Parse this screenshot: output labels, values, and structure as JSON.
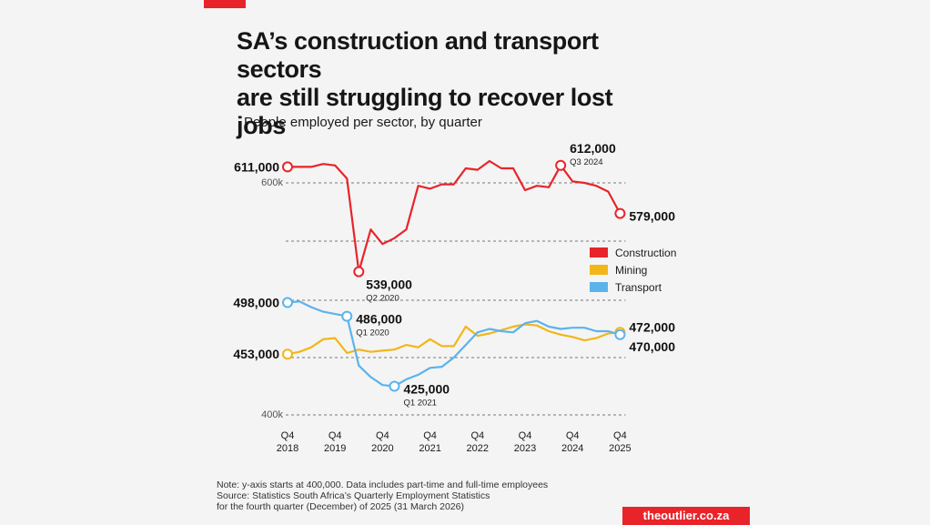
{
  "header": {
    "title_line1": "SA’s construction and transport sectors",
    "title_line2": "are still struggling to recover lost jobs",
    "subtitle": "People employed per sector, by quarter"
  },
  "footer": {
    "note": "Note: y-axis starts at 400,000. Data includes part-time and full-time employees",
    "source_line1": "Source: Statistics South Africa’s Quarterly Employment Statistics",
    "source_line2": "for the fourth quarter (December) of 2025 (31 March 2026)",
    "brand": "theoutlier.co.za"
  },
  "colors": {
    "construction": "#e8242a",
    "mining": "#f2b619",
    "transport": "#5bb3ec",
    "accent": "#e8242a"
  },
  "chart_data": {
    "type": "line",
    "title": "People employed per sector, by quarter",
    "x_tick_labels": [
      {
        "q": "Q4",
        "y": "2018"
      },
      {
        "q": "Q4",
        "y": "2019"
      },
      {
        "q": "Q4",
        "y": "2020"
      },
      {
        "q": "Q4",
        "y": "2021"
      },
      {
        "q": "Q4",
        "y": "2022"
      },
      {
        "q": "Q4",
        "y": "2023"
      },
      {
        "q": "Q4",
        "y": "2024"
      },
      {
        "q": "Q4",
        "y": "2025"
      }
    ],
    "y_tick_labels": [
      "600k",
      "400k"
    ],
    "x": [
      "Q4 2018",
      "Q1 2019",
      "Q2 2019",
      "Q3 2019",
      "Q4 2019",
      "Q1 2020",
      "Q2 2020",
      "Q3 2020",
      "Q4 2020",
      "Q1 2021",
      "Q2 2021",
      "Q3 2021",
      "Q4 2021",
      "Q1 2022",
      "Q2 2022",
      "Q3 2022",
      "Q4 2022",
      "Q1 2023",
      "Q2 2023",
      "Q3 2023",
      "Q4 2023",
      "Q1 2024",
      "Q2 2024",
      "Q3 2024",
      "Q4 2024",
      "Q1 2025",
      "Q2 2025",
      "Q3 2025",
      "Q4 2025"
    ],
    "series": [
      {
        "name": "Construction",
        "color": "#e8242a",
        "values": [
          611000,
          611000,
          611000,
          613000,
          612000,
          603000,
          539000,
          568000,
          558000,
          562000,
          568000,
          598000,
          596000,
          599000,
          599000,
          610000,
          609000,
          615000,
          610000,
          610000,
          595000,
          598000,
          597000,
          612000,
          601000,
          600000,
          598000,
          594000,
          579000
        ]
      },
      {
        "name": "Mining",
        "color": "#f2b619",
        "values": [
          453000,
          455000,
          459000,
          466000,
          467000,
          454000,
          457000,
          455000,
          456000,
          457000,
          461000,
          459000,
          466000,
          460000,
          460000,
          477000,
          469000,
          471000,
          474000,
          477000,
          479000,
          478000,
          473000,
          470000,
          468000,
          465000,
          467000,
          471000,
          472000
        ]
      },
      {
        "name": "Transport",
        "color": "#5bb3ec",
        "values": [
          498000,
          499000,
          494000,
          490000,
          488000,
          486000,
          443000,
          433000,
          426000,
          425000,
          431000,
          435000,
          441000,
          442000,
          450000,
          461000,
          472000,
          475000,
          473000,
          472000,
          480000,
          482000,
          477000,
          475000,
          476000,
          476000,
          473000,
          473000,
          470000
        ]
      }
    ],
    "ylim": [
      400000,
      625000
    ],
    "gridlines": [
      600000,
      560000,
      500000,
      450000,
      400000
    ],
    "legend": [
      "Construction",
      "Mining",
      "Transport"
    ],
    "legend_position": "right",
    "annotations": [
      {
        "series": 0,
        "index": 0,
        "value": "611,000",
        "sub": "",
        "side": "left"
      },
      {
        "series": 0,
        "index": 6,
        "value": "539,000",
        "sub": "Q2 2020",
        "side": "below"
      },
      {
        "series": 0,
        "index": 23,
        "value": "612,000",
        "sub": "Q3 2024",
        "side": "above"
      },
      {
        "series": 0,
        "index": 28,
        "value": "579,000",
        "sub": "",
        "side": "right"
      },
      {
        "series": 2,
        "index": 0,
        "value": "498,000",
        "sub": "",
        "side": "left"
      },
      {
        "series": 1,
        "index": 0,
        "value": "453,000",
        "sub": "",
        "side": "left"
      },
      {
        "series": 2,
        "index": 5,
        "value": "486,000",
        "sub": "Q1 2020",
        "side": "right"
      },
      {
        "series": 2,
        "index": 9,
        "value": "425,000",
        "sub": "Q1 2021",
        "side": "right"
      },
      {
        "series": 1,
        "index": 28,
        "value": "472,000",
        "sub": "",
        "side": "right-up"
      },
      {
        "series": 2,
        "index": 28,
        "value": "470,000",
        "sub": "",
        "side": "right-down"
      }
    ]
  }
}
